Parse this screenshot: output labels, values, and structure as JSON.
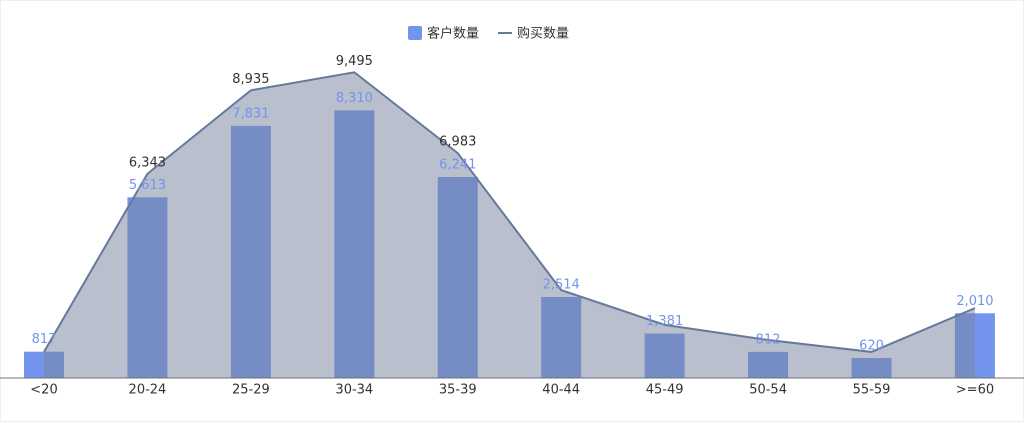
{
  "chart_data": {
    "type": "bar-line",
    "categories": [
      "<20",
      "20-24",
      "25-29",
      "30-34",
      "35-39",
      "40-44",
      "45-49",
      "50-54",
      "55-59",
      ">=60"
    ],
    "series": [
      {
        "name": "客户数量",
        "type": "bar",
        "color": "#7294ec",
        "values": [
          817,
          5613,
          7831,
          8310,
          6241,
          2514,
          1381,
          812,
          620,
          2010
        ],
        "value_labels": [
          "817",
          "5,613",
          "7,831",
          "8,310",
          "6,241",
          "2,514",
          "1,381",
          "812",
          "620",
          "2,010"
        ]
      },
      {
        "name": "购买数量",
        "type": "line",
        "color": "#66799a",
        "values": [
          810,
          6343,
          8935,
          9495,
          6983,
          2730,
          1650,
          1180,
          810,
          2170
        ],
        "value_labels": [
          null,
          "6,343",
          "8,935",
          "9,495",
          "6,983",
          null,
          null,
          null,
          null,
          null
        ]
      }
    ],
    "ylim": [
      0,
      10000
    ]
  }
}
